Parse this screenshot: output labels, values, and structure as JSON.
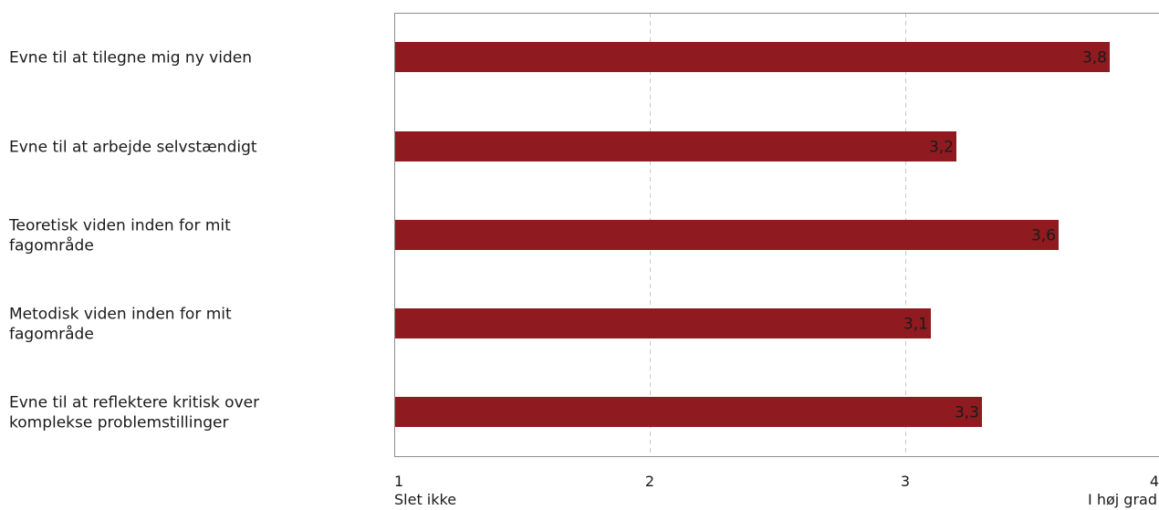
{
  "chart_data": {
    "type": "bar",
    "orientation": "horizontal",
    "categories": [
      [
        "Evne til at tilegne mig ny viden"
      ],
      [
        "Evne til at arbejde selvstændigt"
      ],
      [
        "Teoretisk viden inden for mit",
        "fagområde"
      ],
      [
        "Metodisk viden inden for mit",
        "fagområde"
      ],
      [
        "Evne til at reflektere kritisk over",
        "komplekse problemstillinger"
      ]
    ],
    "values": [
      3.8,
      3.2,
      3.6,
      3.1,
      3.3
    ],
    "value_labels": [
      "3,8",
      "3,2",
      "3,6",
      "3,1",
      "3,3"
    ],
    "xlim": [
      1,
      4
    ],
    "x_ticks": [
      "1",
      "2",
      "3",
      "4"
    ],
    "x_min_label": "Slet ikke",
    "x_max_label": "I høj grad",
    "grid": "vertical-dashed",
    "bar_color": "#8f1b20",
    "axis_color": "#8c8c8c",
    "grid_color": "#c8c8c8"
  }
}
